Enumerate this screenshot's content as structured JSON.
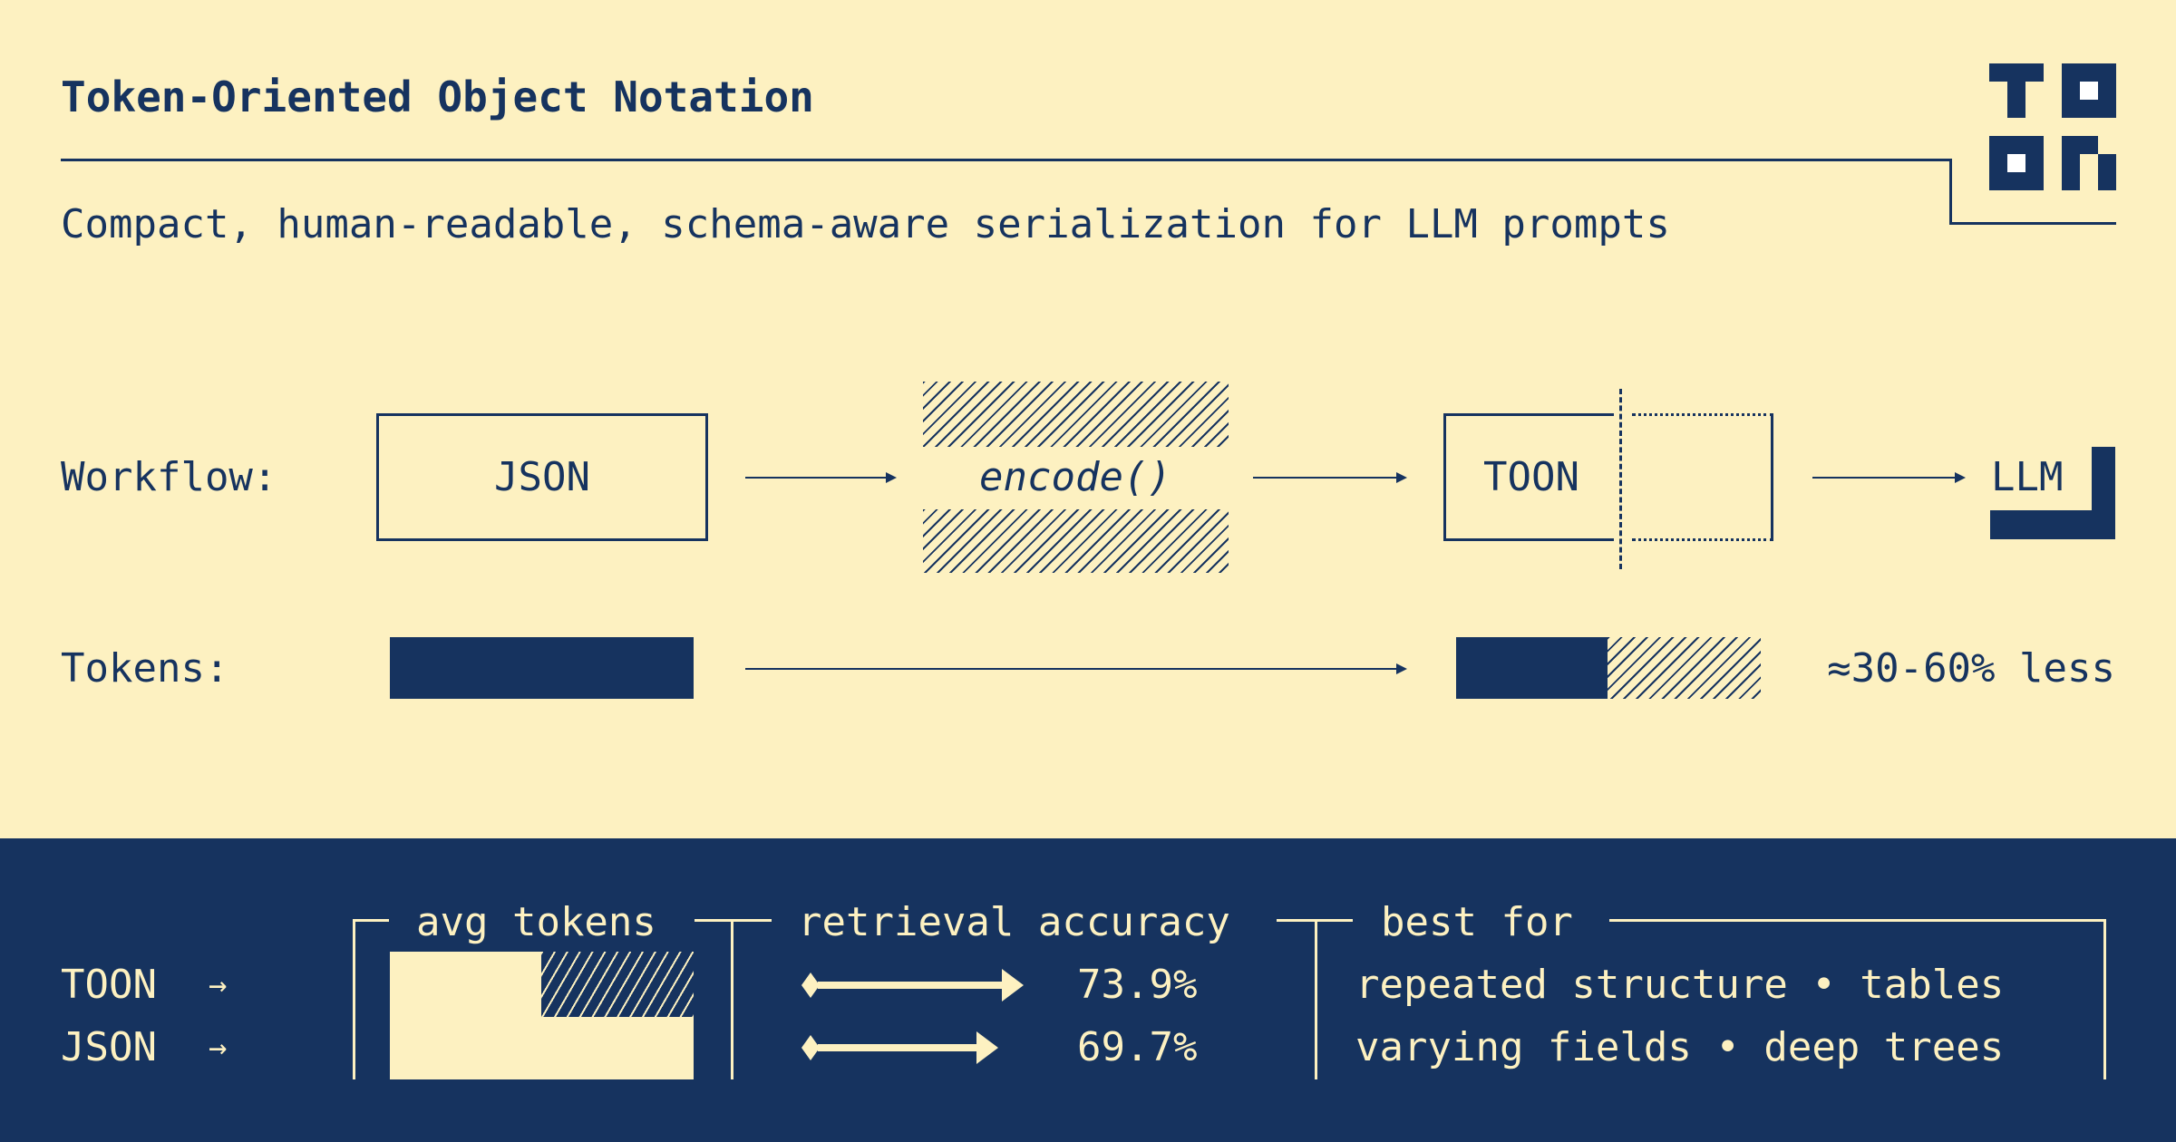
{
  "header": {
    "title": "Token-Oriented Object Notation",
    "subtitle": "Compact, human-readable, schema-aware serialization for LLM prompts",
    "logo_text": "TOON"
  },
  "workflow": {
    "label": "Workflow:",
    "input": "JSON",
    "step": "encode()",
    "output": "TOON",
    "target": "LLM"
  },
  "tokens": {
    "label": "Tokens:",
    "json_relative": 1.0,
    "toon_relative": 0.5,
    "savings": "≈30-60% less"
  },
  "comparison": {
    "rows": [
      {
        "label": "TOON",
        "arrow": "→",
        "accuracy": "73.9%"
      },
      {
        "label": "JSON",
        "arrow": "→",
        "accuracy": "69.7%"
      }
    ],
    "avg_tokens_header": "avg tokens",
    "accuracy_header": "retrieval accuracy",
    "best_for_header": "best for",
    "best_for": [
      "repeated structure • tables",
      "varying fields • deep trees"
    ]
  },
  "colors": {
    "background": "#fdf1c1",
    "navy": "#16335f"
  }
}
